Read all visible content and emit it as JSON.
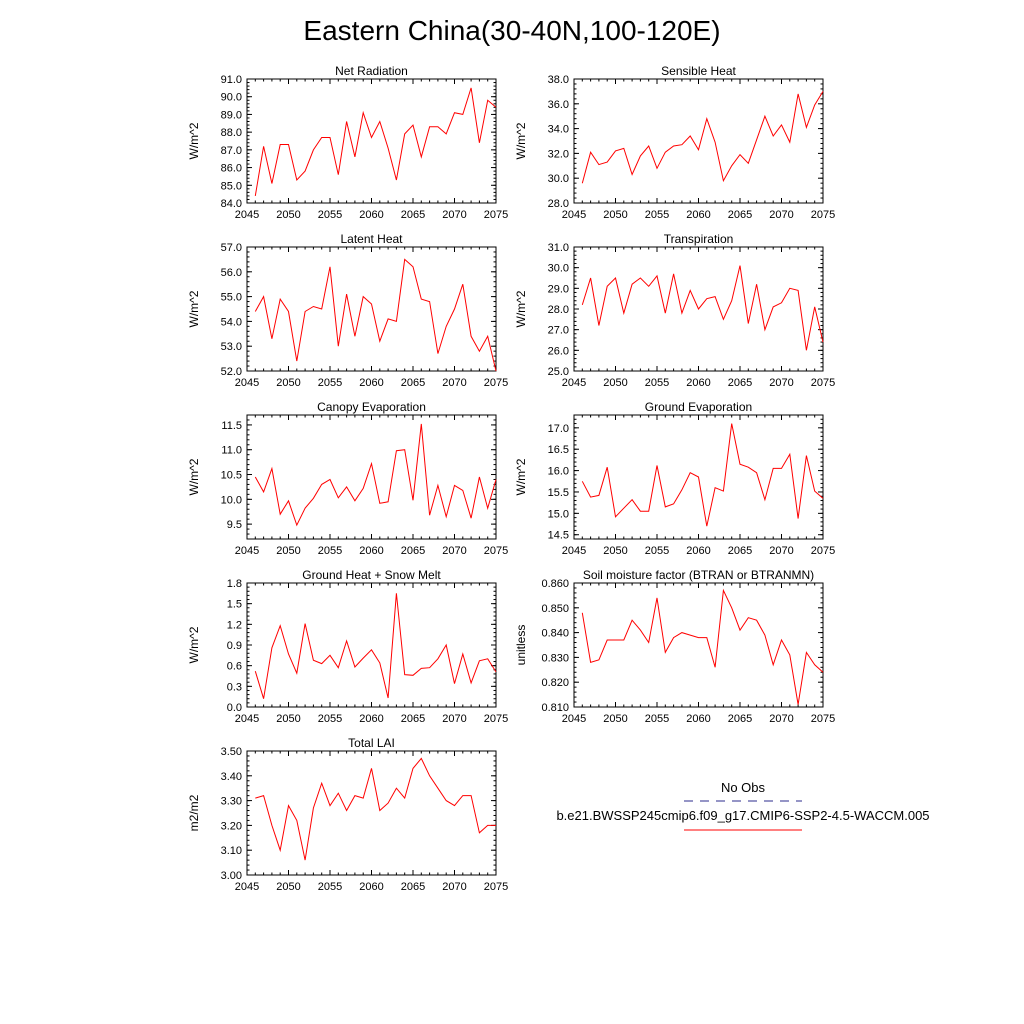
{
  "title": "Eastern China(30-40N,100-120E)",
  "legend": {
    "obs_label": "No Obs",
    "obs_color": "#2b2b8c",
    "model_label": "b.e21.BWSSP245cmip6.f09_g17.CMIP6-SSP2-4.5-WACCM.005",
    "model_color": "#ff0000"
  },
  "chart_data": [
    {
      "type": "line",
      "title": "Net Radiation",
      "ylabel": "W/m^2",
      "xlim": [
        2045,
        2075
      ],
      "ylim": [
        84.0,
        91.0
      ],
      "yticks": [
        84.0,
        85.0,
        86.0,
        87.0,
        88.0,
        89.0,
        90.0,
        91.0
      ],
      "ytick_decimals": 1,
      "xticks": [
        2045,
        2050,
        2055,
        2060,
        2065,
        2070,
        2075
      ],
      "x": [
        2046,
        2047,
        2048,
        2049,
        2050,
        2051,
        2052,
        2053,
        2054,
        2055,
        2056,
        2057,
        2058,
        2059,
        2060,
        2061,
        2062,
        2063,
        2064,
        2065,
        2066,
        2067,
        2068,
        2069,
        2070,
        2071,
        2072,
        2073,
        2074,
        2075
      ],
      "values": [
        84.4,
        87.2,
        85.1,
        87.3,
        87.3,
        85.3,
        85.8,
        87.0,
        87.7,
        87.7,
        85.6,
        88.6,
        86.6,
        89.1,
        87.7,
        88.6,
        87.1,
        85.3,
        87.9,
        88.4,
        86.6,
        88.3,
        88.3,
        87.9,
        89.1,
        89.0,
        90.5,
        87.4,
        89.8,
        89.4
      ],
      "color": "#ff0000"
    },
    {
      "type": "line",
      "title": "Sensible Heat",
      "ylabel": "W/m^2",
      "xlim": [
        2045,
        2075
      ],
      "ylim": [
        28.0,
        38.0
      ],
      "yticks": [
        28.0,
        30.0,
        32.0,
        34.0,
        36.0,
        38.0
      ],
      "ytick_decimals": 1,
      "xticks": [
        2045,
        2050,
        2055,
        2060,
        2065,
        2070,
        2075
      ],
      "x": [
        2046,
        2047,
        2048,
        2049,
        2050,
        2051,
        2052,
        2053,
        2054,
        2055,
        2056,
        2057,
        2058,
        2059,
        2060,
        2061,
        2062,
        2063,
        2064,
        2065,
        2066,
        2067,
        2068,
        2069,
        2070,
        2071,
        2072,
        2073,
        2074,
        2075
      ],
      "values": [
        29.6,
        32.1,
        31.1,
        31.3,
        32.2,
        32.4,
        30.3,
        31.8,
        32.6,
        30.8,
        32.1,
        32.6,
        32.7,
        33.4,
        32.3,
        34.8,
        32.9,
        29.8,
        31.0,
        31.9,
        31.2,
        33.1,
        35.0,
        33.4,
        34.3,
        32.9,
        36.8,
        34.1,
        35.9,
        37.0
      ],
      "color": "#ff0000"
    },
    {
      "type": "line",
      "title": "Latent Heat",
      "ylabel": "W/m^2",
      "xlim": [
        2045,
        2075
      ],
      "ylim": [
        52.0,
        57.0
      ],
      "yticks": [
        52.0,
        53.0,
        54.0,
        55.0,
        56.0,
        57.0
      ],
      "ytick_decimals": 1,
      "xticks": [
        2045,
        2050,
        2055,
        2060,
        2065,
        2070,
        2075
      ],
      "x": [
        2046,
        2047,
        2048,
        2049,
        2050,
        2051,
        2052,
        2053,
        2054,
        2055,
        2056,
        2057,
        2058,
        2059,
        2060,
        2061,
        2062,
        2063,
        2064,
        2065,
        2066,
        2067,
        2068,
        2069,
        2070,
        2071,
        2072,
        2073,
        2074,
        2075
      ],
      "values": [
        54.4,
        55.0,
        53.3,
        54.9,
        54.4,
        52.4,
        54.4,
        54.6,
        54.5,
        56.2,
        53.0,
        55.1,
        53.4,
        55.0,
        54.7,
        53.2,
        54.1,
        54.0,
        56.5,
        56.2,
        54.9,
        54.8,
        52.7,
        53.8,
        54.5,
        55.5,
        53.4,
        52.8,
        53.4,
        52.0
      ],
      "color": "#ff0000"
    },
    {
      "type": "line",
      "title": "Transpiration",
      "ylabel": "W/m^2",
      "xlim": [
        2045,
        2075
      ],
      "ylim": [
        25.0,
        31.0
      ],
      "yticks": [
        25.0,
        26.0,
        27.0,
        28.0,
        29.0,
        30.0,
        31.0
      ],
      "ytick_decimals": 1,
      "xticks": [
        2045,
        2050,
        2055,
        2060,
        2065,
        2070,
        2075
      ],
      "x": [
        2046,
        2047,
        2048,
        2049,
        2050,
        2051,
        2052,
        2053,
        2054,
        2055,
        2056,
        2057,
        2058,
        2059,
        2060,
        2061,
        2062,
        2063,
        2064,
        2065,
        2066,
        2067,
        2068,
        2069,
        2070,
        2071,
        2072,
        2073,
        2074,
        2075
      ],
      "values": [
        28.2,
        29.5,
        27.2,
        29.1,
        29.5,
        27.8,
        29.2,
        29.5,
        29.1,
        29.6,
        27.8,
        29.7,
        27.8,
        28.9,
        28.0,
        28.5,
        28.6,
        27.5,
        28.4,
        30.1,
        27.3,
        29.2,
        27.0,
        28.1,
        28.3,
        29.0,
        28.9,
        26.0,
        28.1,
        26.4
      ],
      "color": "#ff0000"
    },
    {
      "type": "line",
      "title": "Canopy Evaporation",
      "ylabel": "W/m^2",
      "xlim": [
        2045,
        2075
      ],
      "ylim": [
        9.2,
        11.7
      ],
      "yticks": [
        9.5,
        10.0,
        10.5,
        11.0,
        11.5
      ],
      "ytick_decimals": 1,
      "xticks": [
        2045,
        2050,
        2055,
        2060,
        2065,
        2070,
        2075
      ],
      "x": [
        2046,
        2047,
        2048,
        2049,
        2050,
        2051,
        2052,
        2053,
        2054,
        2055,
        2056,
        2057,
        2058,
        2059,
        2060,
        2061,
        2062,
        2063,
        2064,
        2065,
        2066,
        2067,
        2068,
        2069,
        2070,
        2071,
        2072,
        2073,
        2074,
        2075
      ],
      "values": [
        10.45,
        10.15,
        10.62,
        9.7,
        9.97,
        9.48,
        9.82,
        10.02,
        10.3,
        10.4,
        10.03,
        10.25,
        9.97,
        10.22,
        10.72,
        9.92,
        9.95,
        10.98,
        11.0,
        9.98,
        11.52,
        9.68,
        10.28,
        9.65,
        10.28,
        10.18,
        9.62,
        10.45,
        9.82,
        10.4
      ],
      "color": "#ff0000"
    },
    {
      "type": "line",
      "title": "Ground Evaporation",
      "ylabel": "W/m^2",
      "xlim": [
        2045,
        2075
      ],
      "ylim": [
        14.4,
        17.3
      ],
      "yticks": [
        14.5,
        15.0,
        15.5,
        16.0,
        16.5,
        17.0
      ],
      "ytick_decimals": 1,
      "xticks": [
        2045,
        2050,
        2055,
        2060,
        2065,
        2070,
        2075
      ],
      "x": [
        2046,
        2047,
        2048,
        2049,
        2050,
        2051,
        2052,
        2053,
        2054,
        2055,
        2056,
        2057,
        2058,
        2059,
        2060,
        2061,
        2062,
        2063,
        2064,
        2065,
        2066,
        2067,
        2068,
        2069,
        2070,
        2071,
        2072,
        2073,
        2074,
        2075
      ],
      "values": [
        15.75,
        15.38,
        15.42,
        16.08,
        14.92,
        15.12,
        15.32,
        15.05,
        15.05,
        16.12,
        15.15,
        15.22,
        15.55,
        15.95,
        15.85,
        14.7,
        15.6,
        15.52,
        17.1,
        16.15,
        16.08,
        15.95,
        15.32,
        16.05,
        16.05,
        16.38,
        14.88,
        16.35,
        15.52,
        15.35
      ],
      "color": "#ff0000"
    },
    {
      "type": "line",
      "title": "Ground Heat + Snow Melt",
      "ylabel": "W/m^2",
      "xlim": [
        2045,
        2075
      ],
      "ylim": [
        0.0,
        1.8
      ],
      "yticks": [
        0.0,
        0.3,
        0.6,
        0.9,
        1.2,
        1.5,
        1.8
      ],
      "ytick_decimals": 1,
      "xticks": [
        2045,
        2050,
        2055,
        2060,
        2065,
        2070,
        2075
      ],
      "x": [
        2046,
        2047,
        2048,
        2049,
        2050,
        2051,
        2052,
        2053,
        2054,
        2055,
        2056,
        2057,
        2058,
        2059,
        2060,
        2061,
        2062,
        2063,
        2064,
        2065,
        2066,
        2067,
        2068,
        2069,
        2070,
        2071,
        2072,
        2073,
        2074,
        2075
      ],
      "values": [
        0.52,
        0.12,
        0.86,
        1.18,
        0.77,
        0.49,
        1.21,
        0.68,
        0.63,
        0.75,
        0.57,
        0.96,
        0.58,
        0.71,
        0.83,
        0.64,
        0.13,
        1.65,
        0.47,
        0.46,
        0.56,
        0.57,
        0.7,
        0.9,
        0.34,
        0.77,
        0.35,
        0.67,
        0.7,
        0.51
      ],
      "color": "#ff0000"
    },
    {
      "type": "line",
      "title": "Soil moisture factor (BTRAN or BTRANMN)",
      "ylabel": "unitless",
      "xlim": [
        2045,
        2075
      ],
      "ylim": [
        0.81,
        0.86
      ],
      "yticks": [
        0.81,
        0.82,
        0.83,
        0.84,
        0.85,
        0.86
      ],
      "ytick_decimals": 3,
      "xticks": [
        2045,
        2050,
        2055,
        2060,
        2065,
        2070,
        2075
      ],
      "x": [
        2046,
        2047,
        2048,
        2049,
        2050,
        2051,
        2052,
        2053,
        2054,
        2055,
        2056,
        2057,
        2058,
        2059,
        2060,
        2061,
        2062,
        2063,
        2064,
        2065,
        2066,
        2067,
        2068,
        2069,
        2070,
        2071,
        2072,
        2073,
        2074,
        2075
      ],
      "values": [
        0.848,
        0.828,
        0.829,
        0.837,
        0.837,
        0.837,
        0.845,
        0.841,
        0.836,
        0.854,
        0.832,
        0.838,
        0.84,
        0.839,
        0.838,
        0.838,
        0.826,
        0.857,
        0.85,
        0.841,
        0.846,
        0.845,
        0.839,
        0.827,
        0.837,
        0.831,
        0.811,
        0.832,
        0.827,
        0.824
      ],
      "color": "#ff0000"
    },
    {
      "type": "line",
      "title": "Total LAI",
      "ylabel": "m2/m2",
      "xlim": [
        2045,
        2075
      ],
      "ylim": [
        3.0,
        3.5
      ],
      "yticks": [
        3.0,
        3.1,
        3.2,
        3.3,
        3.4,
        3.5
      ],
      "ytick_decimals": 2,
      "xticks": [
        2045,
        2050,
        2055,
        2060,
        2065,
        2070,
        2075
      ],
      "x": [
        2046,
        2047,
        2048,
        2049,
        2050,
        2051,
        2052,
        2053,
        2054,
        2055,
        2056,
        2057,
        2058,
        2059,
        2060,
        2061,
        2062,
        2063,
        2064,
        2065,
        2066,
        2067,
        2068,
        2069,
        2070,
        2071,
        2072,
        2073,
        2074,
        2075
      ],
      "values": [
        3.31,
        3.32,
        3.2,
        3.1,
        3.28,
        3.22,
        3.06,
        3.27,
        3.37,
        3.28,
        3.33,
        3.26,
        3.32,
        3.31,
        3.43,
        3.26,
        3.29,
        3.35,
        3.31,
        3.43,
        3.47,
        3.4,
        3.35,
        3.3,
        3.28,
        3.32,
        3.32,
        3.17,
        3.2,
        3.2
      ],
      "color": "#ff0000"
    }
  ]
}
